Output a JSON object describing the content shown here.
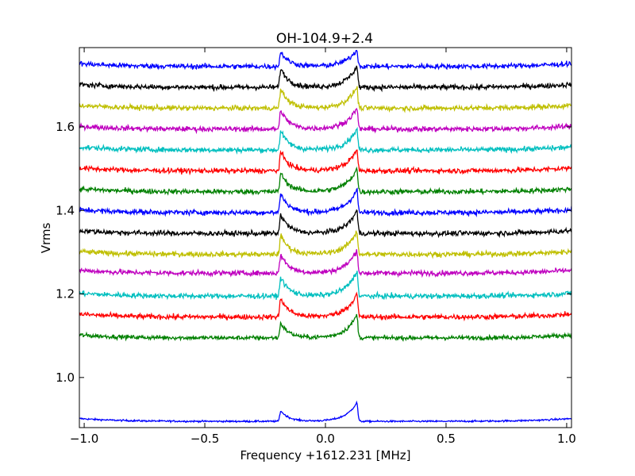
{
  "chart_data": {
    "type": "line",
    "title": "OH-104.9+2.4",
    "xlabel": "Frequency +1612.231 [MHz]",
    "ylabel": "Vrms",
    "xlim": [
      -1.02,
      1.02
    ],
    "ylim": [
      0.88,
      1.79
    ],
    "grid": false,
    "legend": "none",
    "x_ticks": [
      {
        "value": -1.0,
        "label": "−1.0"
      },
      {
        "value": -0.5,
        "label": "−0.5"
      },
      {
        "value": 0.0,
        "label": "0.0"
      },
      {
        "value": 0.5,
        "label": "0.5"
      },
      {
        "value": 1.0,
        "label": "1.0"
      }
    ],
    "y_ticks": [
      {
        "value": 1.0,
        "label": "1.0"
      },
      {
        "value": 1.2,
        "label": "1.2"
      },
      {
        "value": 1.4,
        "label": "1.4"
      },
      {
        "value": 1.6,
        "label": "1.6"
      }
    ],
    "peak_positions": [
      -0.185,
      0.13
    ],
    "series": [
      {
        "color": "#0000ff",
        "baseline": 0.895,
        "noise": 0.002,
        "peak1": 0.025,
        "peak2": 0.045
      },
      {
        "color": "#008000",
        "baseline": 1.095,
        "noise": 0.005,
        "peak1": 0.035,
        "peak2": 0.055
      },
      {
        "color": "#ff0000",
        "baseline": 1.145,
        "noise": 0.006,
        "peak1": 0.045,
        "peak2": 0.055
      },
      {
        "color": "#00bfbf",
        "baseline": 1.195,
        "noise": 0.006,
        "peak1": 0.045,
        "peak2": 0.06
      },
      {
        "color": "#bf00bf",
        "baseline": 1.25,
        "noise": 0.006,
        "peak1": 0.045,
        "peak2": 0.055
      },
      {
        "color": "#bfbf00",
        "baseline": 1.295,
        "noise": 0.006,
        "peak1": 0.045,
        "peak2": 0.055
      },
      {
        "color": "#000000",
        "baseline": 1.345,
        "noise": 0.006,
        "peak1": 0.045,
        "peak2": 0.055
      },
      {
        "color": "#0000ff",
        "baseline": 1.395,
        "noise": 0.006,
        "peak1": 0.045,
        "peak2": 0.055
      },
      {
        "color": "#008000",
        "baseline": 1.445,
        "noise": 0.006,
        "peak1": 0.045,
        "peak2": 0.055
      },
      {
        "color": "#ff0000",
        "baseline": 1.495,
        "noise": 0.006,
        "peak1": 0.045,
        "peak2": 0.05
      },
      {
        "color": "#00bfbf",
        "baseline": 1.545,
        "noise": 0.006,
        "peak1": 0.045,
        "peak2": 0.05
      },
      {
        "color": "#bf00bf",
        "baseline": 1.595,
        "noise": 0.006,
        "peak1": 0.045,
        "peak2": 0.05
      },
      {
        "color": "#bfbf00",
        "baseline": 1.645,
        "noise": 0.006,
        "peak1": 0.045,
        "peak2": 0.05
      },
      {
        "color": "#000000",
        "baseline": 1.695,
        "noise": 0.006,
        "peak1": 0.045,
        "peak2": 0.05
      },
      {
        "color": "#0000ff",
        "baseline": 1.745,
        "noise": 0.006,
        "peak1": 0.035,
        "peak2": 0.04
      }
    ]
  }
}
